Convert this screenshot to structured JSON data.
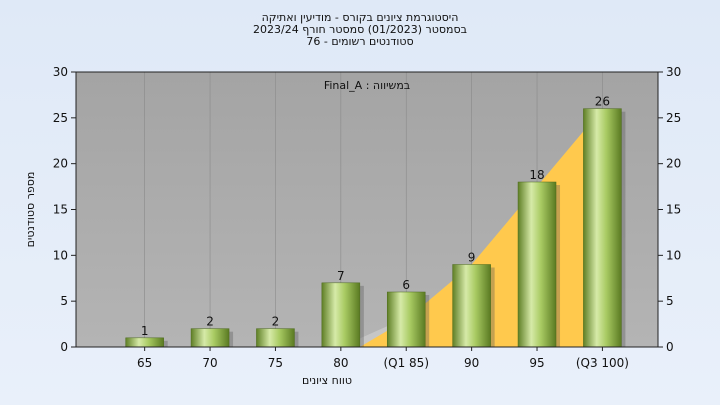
{
  "chart_data": {
    "type": "bar",
    "title": "היסטוגרמת ציונים בקורס - מודיעין ואתיקה",
    "subtitle_1": "בסמסטר  (01/2023)  סמסטר חורף 2023/24",
    "subtitle_2": "סטודנטים רשומים - 76",
    "annotation": "Final_A : במשיווה",
    "xlabel": "טווח ציונים",
    "ylabel": "מספר סטודנטים",
    "categories": [
      "65",
      "70",
      "75",
      "80",
      "(Q1 85)",
      "90",
      "95",
      "(Q3 100)"
    ],
    "values": [
      1,
      2,
      2,
      7,
      6,
      9,
      18,
      26
    ],
    "ylim": [
      0,
      30
    ],
    "yticks": [
      "0",
      "5",
      "10",
      "15",
      "20",
      "25",
      "30"
    ],
    "grid": "vertical",
    "colors": {
      "plot_background": "#a9a9a9",
      "bar_light": "#d4e8a4",
      "bar_mid": "#9fc25a",
      "bar_dark": "#5a7a22",
      "area_fill": "#ffc94d",
      "area_grey": "#c8c8c8"
    }
  }
}
